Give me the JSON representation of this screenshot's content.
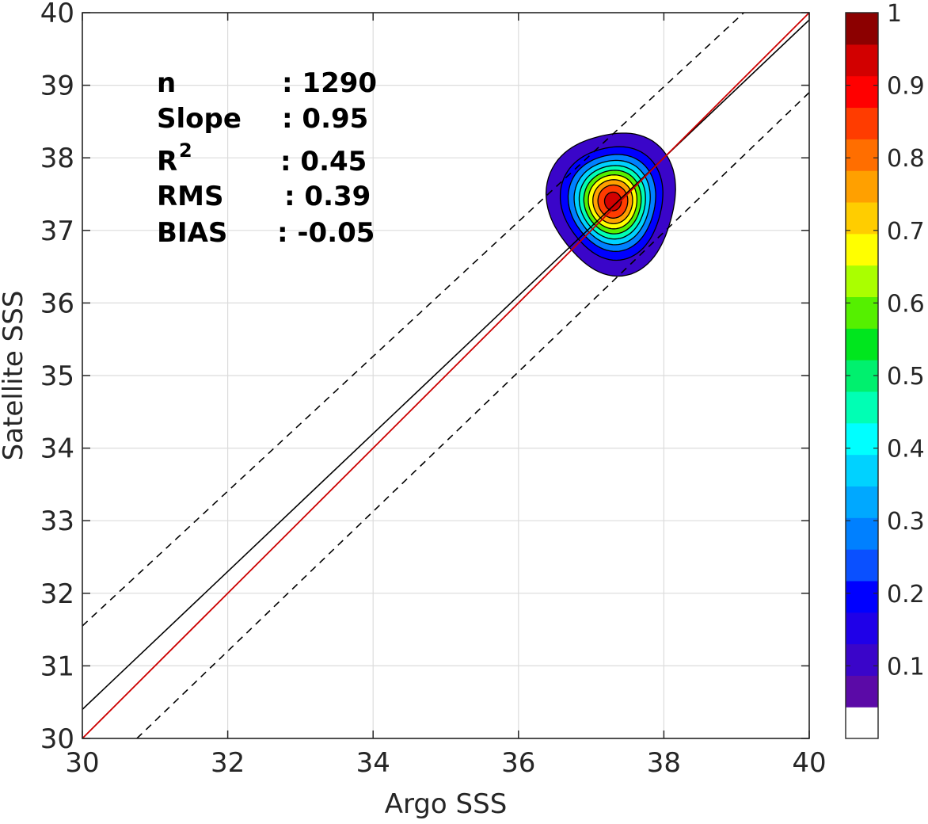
{
  "chart_data": {
    "type": "scatter",
    "subtype": "density-contour",
    "xlabel": "Argo SSS",
    "ylabel": "Satellite SSS",
    "xlim": [
      30,
      40
    ],
    "ylim": [
      30,
      40
    ],
    "xticks": [
      "30",
      "32",
      "34",
      "36",
      "38",
      "40"
    ],
    "yticks": [
      "30",
      "31",
      "32",
      "33",
      "34",
      "35",
      "36",
      "37",
      "38",
      "39",
      "40"
    ],
    "grid": true,
    "stats": [
      {
        "label": "n",
        "value": ": 1290"
      },
      {
        "label": "Slope",
        "value": ": 0.95"
      },
      {
        "label": "R",
        "sup": "2",
        "value": ": 0.45"
      },
      {
        "label": "RMS",
        "value": ": 0.39"
      },
      {
        "label": "BIAS",
        "value": ": -0.05"
      }
    ],
    "lines": {
      "one_to_one": {
        "points": [
          [
            30,
            30
          ],
          [
            40,
            40
          ]
        ],
        "color": "#cc0000"
      },
      "fit": {
        "points": [
          [
            30,
            30.4
          ],
          [
            40,
            39.9
          ]
        ],
        "color": "#000000"
      },
      "upper_bound": {
        "points": [
          [
            30,
            31.55
          ],
          [
            39.1,
            40
          ]
        ],
        "color": "#000000",
        "dash": true
      },
      "lower_bound": {
        "points": [
          [
            30.75,
            30
          ],
          [
            40,
            38.9
          ]
        ],
        "color": "#000000",
        "dash": true
      }
    },
    "density": {
      "center": [
        37.3,
        37.4
      ],
      "levels": [
        0.05,
        0.15,
        0.25,
        0.35,
        0.45,
        0.55,
        0.65,
        0.75,
        0.85,
        0.95
      ],
      "peak": 1.0
    },
    "colorbar": {
      "ticks": [
        "0.1",
        "0.2",
        "0.3",
        "0.4",
        "0.5",
        "0.6",
        "0.7",
        "0.8",
        "0.9",
        "1"
      ],
      "colors": [
        "#ffffff",
        "#5b0aa7",
        "#3a05c9",
        "#1f00e8",
        "#0000ff",
        "#0a50ff",
        "#0080ff",
        "#00a8ff",
        "#00d2ff",
        "#00ffff",
        "#00ffb4",
        "#00f06e",
        "#00e61e",
        "#55f000",
        "#aaff00",
        "#ffff00",
        "#ffcd00",
        "#ffa000",
        "#ff6e00",
        "#ff3c00",
        "#ff0000",
        "#d20000",
        "#8c0000"
      ]
    }
  }
}
